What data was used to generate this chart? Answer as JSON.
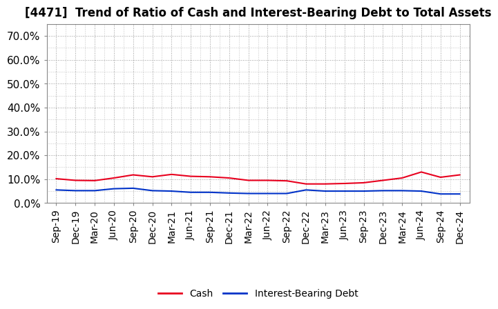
{
  "title": "[4471]  Trend of Ratio of Cash and Interest-Bearing Debt to Total Assets",
  "x_labels": [
    "Sep-19",
    "Dec-19",
    "Mar-20",
    "Jun-20",
    "Sep-20",
    "Dec-20",
    "Mar-21",
    "Jun-21",
    "Sep-21",
    "Dec-21",
    "Mar-22",
    "Jun-22",
    "Sep-22",
    "Dec-22",
    "Mar-23",
    "Jun-23",
    "Sep-23",
    "Dec-23",
    "Mar-24",
    "Jun-24",
    "Sep-24",
    "Dec-24"
  ],
  "cash": [
    10.2,
    9.5,
    9.4,
    10.5,
    11.8,
    11.0,
    12.0,
    11.2,
    11.0,
    10.5,
    9.5,
    9.5,
    9.3,
    8.0,
    8.0,
    8.2,
    8.5,
    9.5,
    10.5,
    13.0,
    10.8,
    11.8
  ],
  "interest_bearing_debt": [
    5.5,
    5.2,
    5.2,
    6.0,
    6.2,
    5.2,
    5.0,
    4.5,
    4.5,
    4.2,
    4.0,
    4.0,
    4.0,
    5.5,
    5.0,
    5.0,
    5.0,
    5.2,
    5.2,
    5.0,
    3.8,
    3.8
  ],
  "cash_color": "#e8001e",
  "debt_color": "#0032c8",
  "ylim": [
    0,
    75
  ],
  "yticks": [
    0,
    10,
    20,
    30,
    40,
    50,
    60,
    70
  ],
  "ytick_labels": [
    "0.0%",
    "10.0%",
    "20.0%",
    "30.0%",
    "40.0%",
    "50.0%",
    "60.0%",
    "70.0%"
  ],
  "legend_cash": "Cash",
  "legend_debt": "Interest-Bearing Debt",
  "background_color": "#ffffff",
  "grid_color": "#999999",
  "title_fontsize": 12,
  "legend_fontsize": 10,
  "tick_fontsize": 10,
  "ytick_fontsize": 11
}
